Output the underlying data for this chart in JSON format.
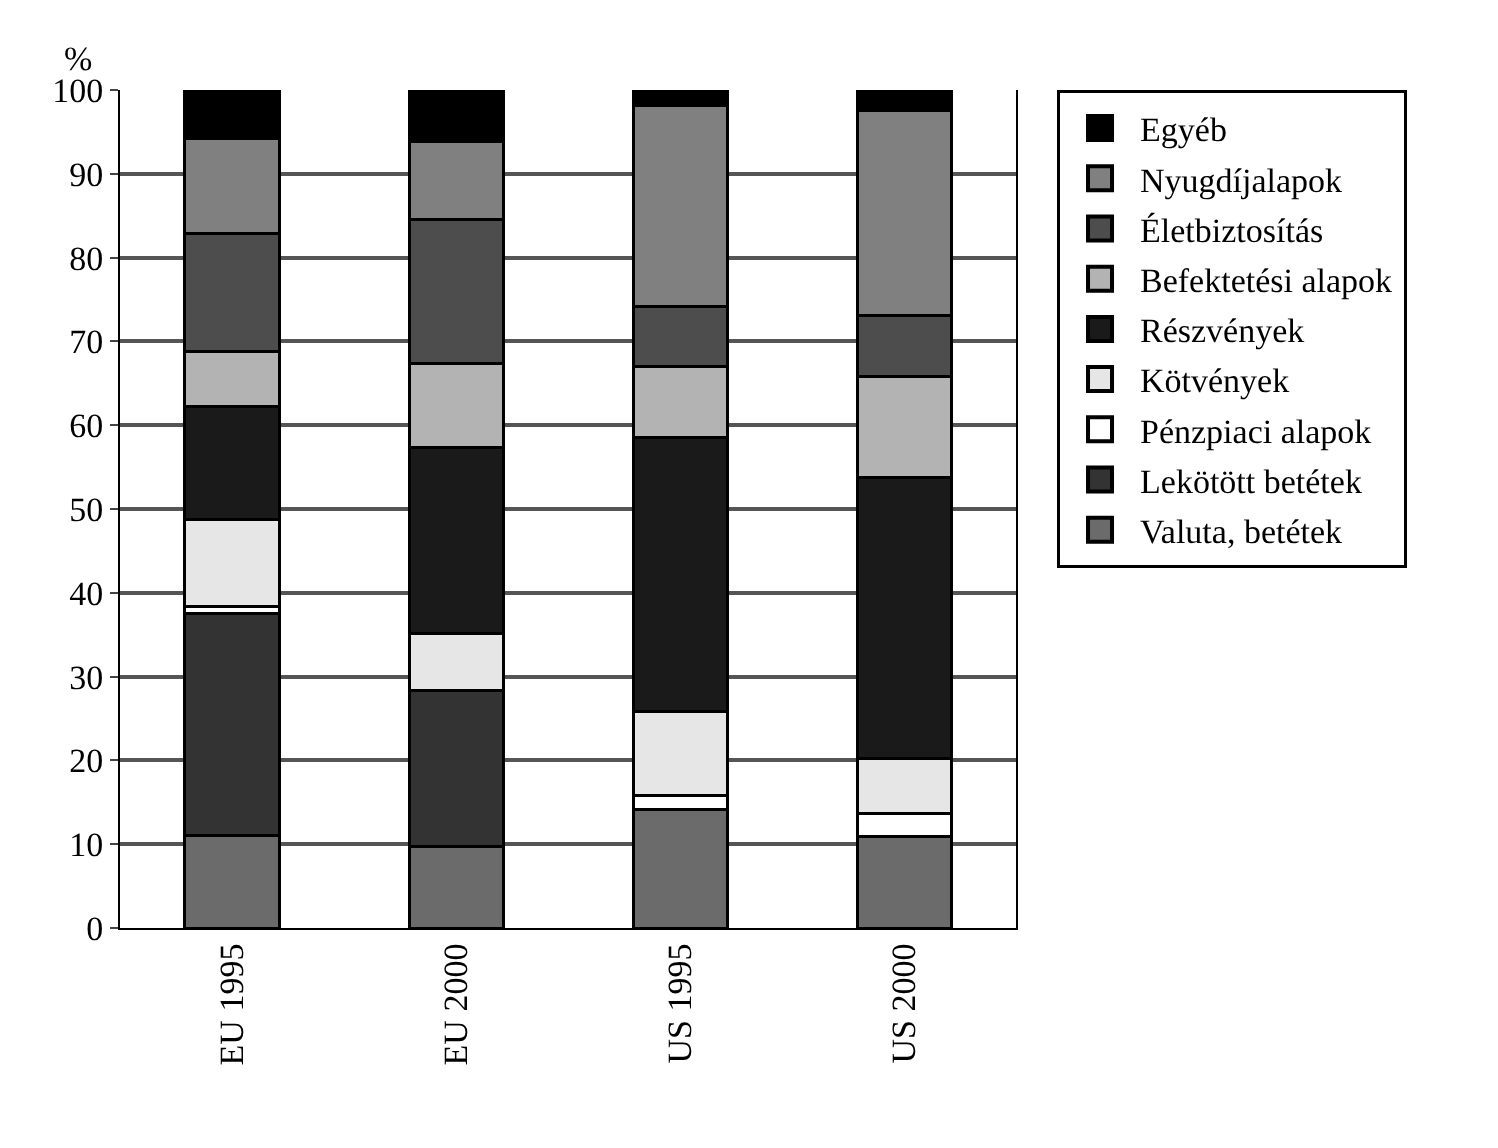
{
  "chart_data": {
    "type": "bar",
    "stacked": true,
    "ylabel": "%",
    "categories": [
      "EU 1995",
      "EU 2000",
      "US 1995",
      "US 2000"
    ],
    "ylim": [
      0,
      100
    ],
    "yticks": [
      0,
      10,
      20,
      30,
      40,
      50,
      60,
      70,
      80,
      90,
      100
    ],
    "grid": "y",
    "legend": "right",
    "series": [
      {
        "name": "Valuta, betétek",
        "color": "#6b6b6b",
        "values": [
          11,
          9.7,
          14.2,
          10.9
        ]
      },
      {
        "name": "Lekötött betétek",
        "color": "#333333",
        "values": [
          26.5,
          18.6,
          0,
          0
        ]
      },
      {
        "name": "Pénzpiaci alapok",
        "color": "#ffffff",
        "values": [
          0.9,
          null,
          1.6,
          2.8
        ]
      },
      {
        "name": "Kötvények",
        "color": "#e6e6e6",
        "values": [
          10.4,
          6.8,
          10.0,
          6.5
        ]
      },
      {
        "name": "Részvények",
        "color": "#1a1a1a",
        "values": [
          13.4,
          22.2,
          32.7,
          33.6
        ]
      },
      {
        "name": "Befektetési alapok",
        "color": "#b3b3b3",
        "values": [
          6.6,
          10.1,
          8.5,
          12
        ]
      },
      {
        "name": "Életbiztosítás",
        "color": "#4d4d4d",
        "values": [
          14.1,
          17.1,
          7.2,
          7.3
        ]
      },
      {
        "name": "Nyugdíjalapok",
        "color": "#808080",
        "values": [
          11.3,
          9.3,
          24.0,
          24.5
        ]
      },
      {
        "name": "Egyéb",
        "color": "#000000",
        "values": [
          5.8,
          6.2,
          1.8,
          2.4
        ]
      }
    ]
  }
}
